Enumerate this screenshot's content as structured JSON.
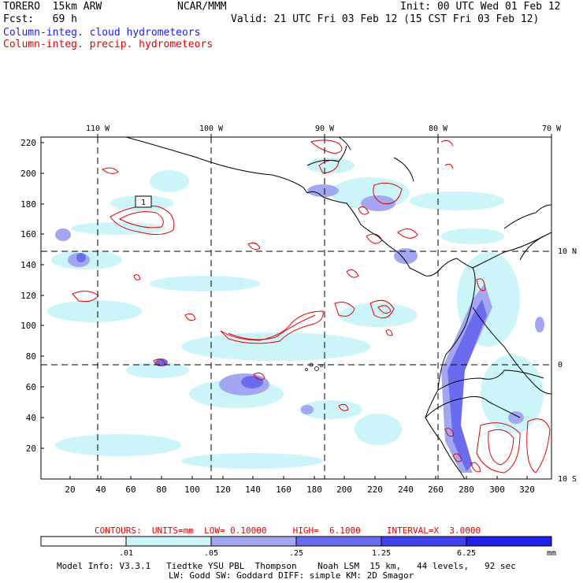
{
  "header": {
    "model_label": "TORERO  15km ARW",
    "org": "NCAR/MMM",
    "init": "Init: 00 UTC Wed 01 Feb 12",
    "fcst": "Fcst:   69 h",
    "valid": "Valid: 21 UTC Fri 03 Feb 12 (15 CST Fri 03 Feb 12)",
    "field_cloud": "Column-integ. cloud hydrometeors",
    "field_precip": "Column-integ. precip. hydrometeors"
  },
  "map": {
    "top_lon_labels": [
      "110 W",
      "100 W",
      "90 W",
      "80 W",
      "70 W"
    ],
    "right_lat_labels": [
      "10 N",
      "0",
      "10 S"
    ],
    "left_y_ticks": [
      "220",
      "200",
      "180",
      "160",
      "140",
      "120",
      "100",
      "80",
      "60",
      "40",
      "20"
    ],
    "bottom_x_ticks": [
      "20",
      "40",
      "60",
      "80",
      "100",
      "120",
      "140",
      "160",
      "180",
      "200",
      "220",
      "240",
      "260",
      "280",
      "300",
      "320"
    ],
    "contour_label": "1"
  },
  "contours_info": {
    "text": "CONTOURS:  UNITS=mm  LOW= 0.10000     HIGH=  6.1000     INTERVAL=X  3.0000"
  },
  "colorbar": {
    "colors": [
      "#ffffff",
      "#ccf5fa",
      "#a3a6f0",
      "#6b6bef",
      "#4040ee",
      "#2020e8"
    ],
    "labels": [
      ".01",
      ".05",
      ".25",
      "1.25",
      "6.25"
    ],
    "unit": "mm"
  },
  "footer": {
    "line1": "Model Info: V3.3.1   Tiedtke YSU PBL  Thompson    Noah LSM  15 km,   44 levels,   92 sec",
    "line2": "LW: Godd SW: Goddard DIFF: simple KM: 2D Smagor"
  }
}
